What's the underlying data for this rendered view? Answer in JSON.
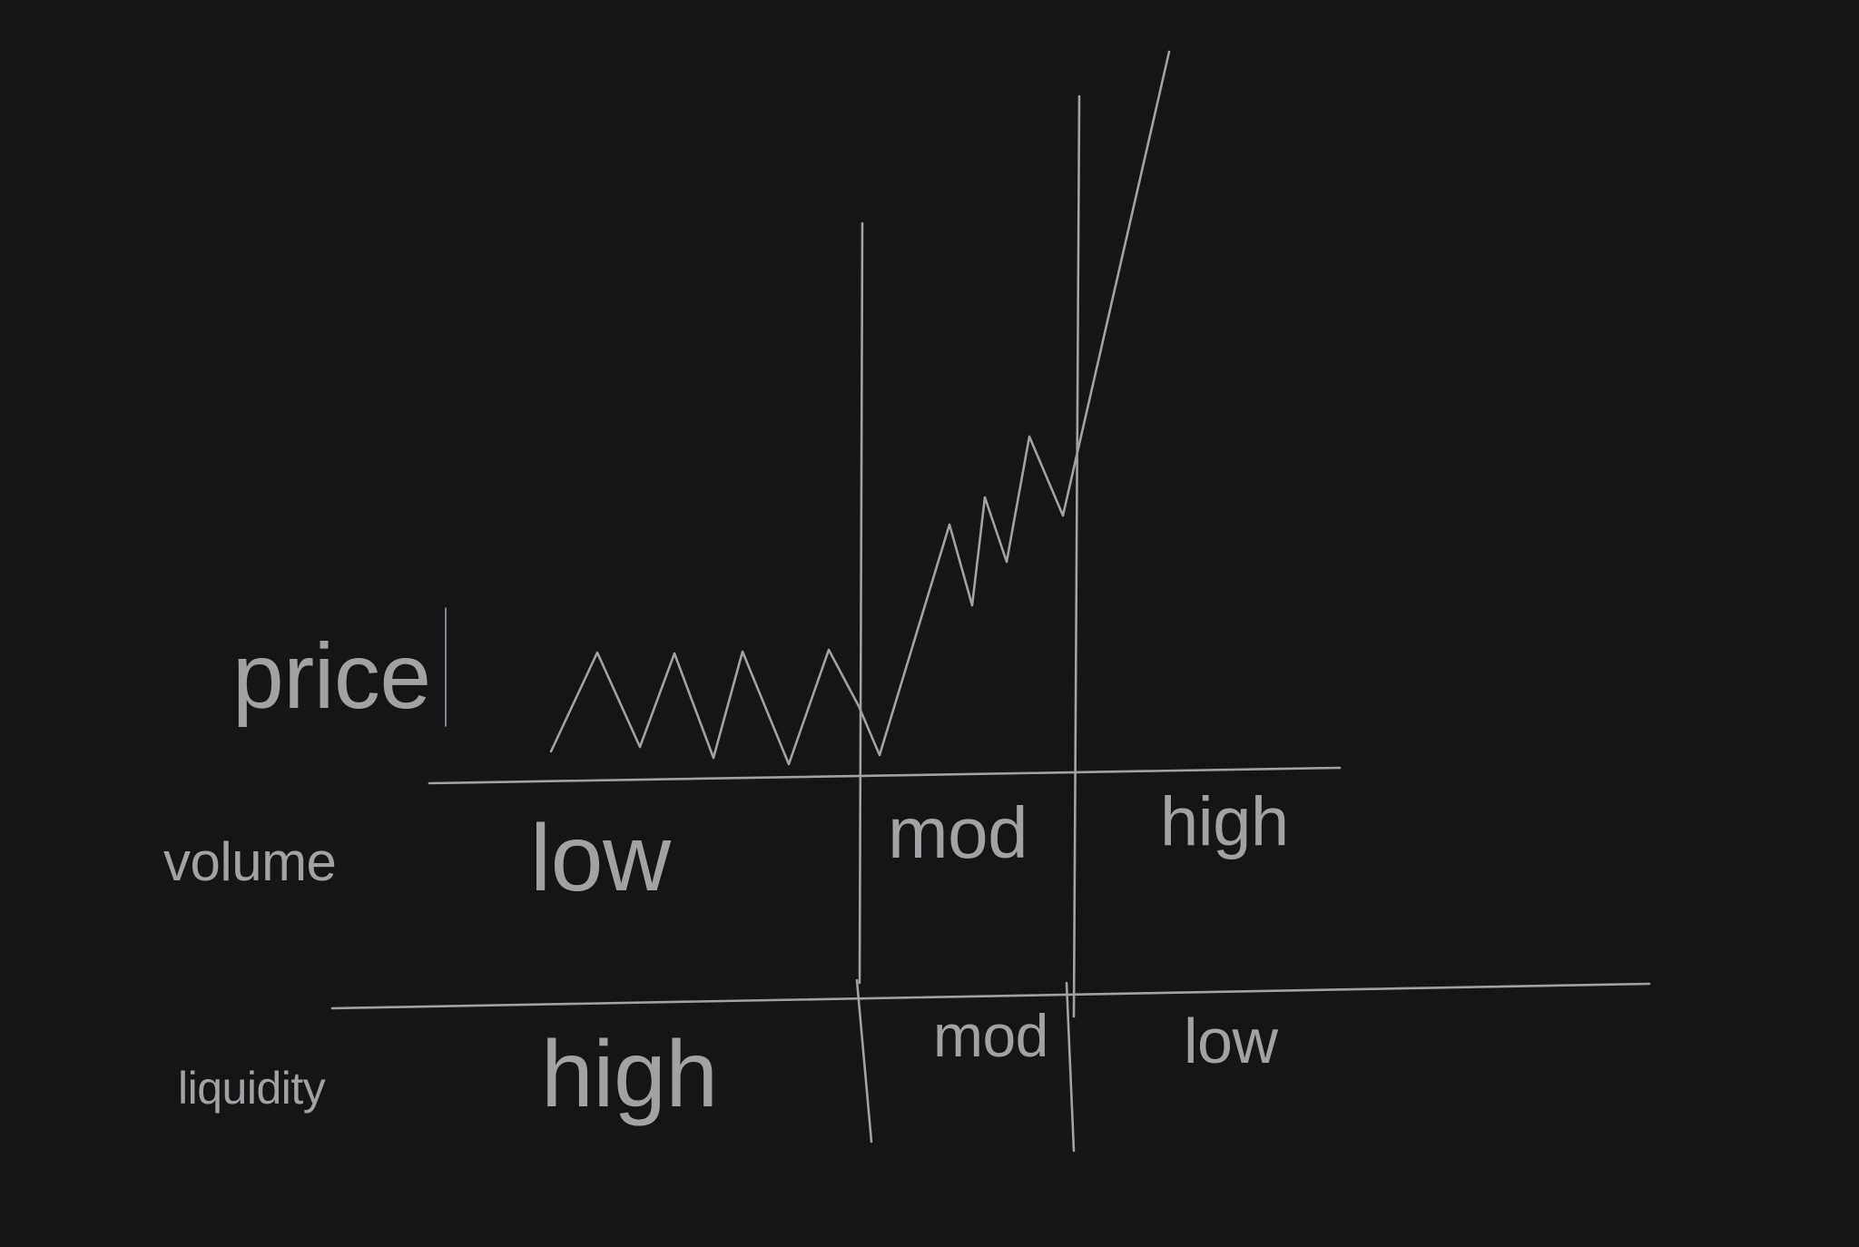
{
  "colors": {
    "background": "#141517",
    "ink": "#a3a1a4"
  },
  "labels": {
    "price": "price",
    "volume": "volume",
    "liquidity": "liquidity",
    "volume_levels": {
      "low": "low",
      "mod": "mod",
      "high": "high"
    },
    "liquidity_levels": {
      "high": "high",
      "mod": "mod",
      "low": "low"
    }
  }
}
